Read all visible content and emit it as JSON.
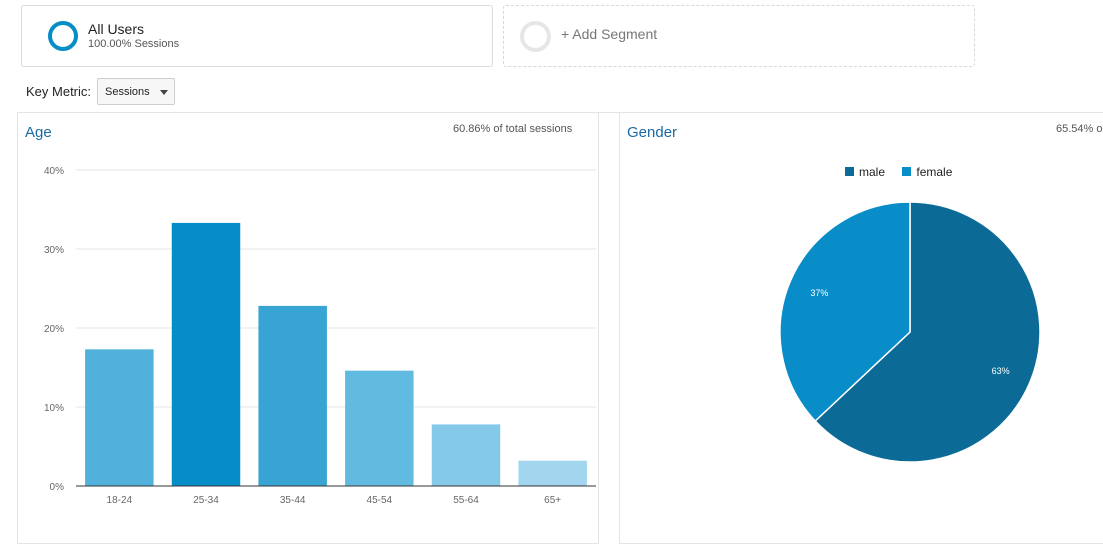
{
  "segment": {
    "title": "All Users",
    "subtitle": "100.00% Sessions"
  },
  "add_segment": {
    "label": "+ Add Segment"
  },
  "key_metric": {
    "label": "Key Metric:",
    "value": "Sessions"
  },
  "age_panel": {
    "title": "Age",
    "note": "60.86% of total sessions"
  },
  "gender_panel": {
    "title": "Gender",
    "note": "65.54% o"
  },
  "colors": {
    "accent": "#058dc7",
    "link": "#1a6aa3",
    "male": "#0b6b96",
    "female": "#088dc8"
  },
  "chart_data": [
    {
      "type": "bar",
      "title": "Age",
      "categories": [
        "18-24",
        "25-34",
        "35-44",
        "45-54",
        "55-64",
        "65+"
      ],
      "values": [
        17.3,
        33.3,
        22.8,
        14.6,
        7.8,
        3.2
      ],
      "colors": [
        "#51b1db",
        "#058dc7",
        "#37a4d3",
        "#61bbe0",
        "#85c9e8",
        "#a1d6ee"
      ],
      "yticks": [
        "0%",
        "10%",
        "20%",
        "30%",
        "40%"
      ],
      "ylim": [
        0,
        40
      ],
      "grid": true
    },
    {
      "type": "pie",
      "title": "Gender",
      "legend": [
        "male",
        "female"
      ],
      "legend_position": "top",
      "slices": [
        {
          "name": "male",
          "value": 63,
          "label": "63%",
          "color": "#0b6b96"
        },
        {
          "name": "female",
          "value": 37,
          "label": "37%",
          "color": "#088dc8"
        }
      ]
    }
  ]
}
